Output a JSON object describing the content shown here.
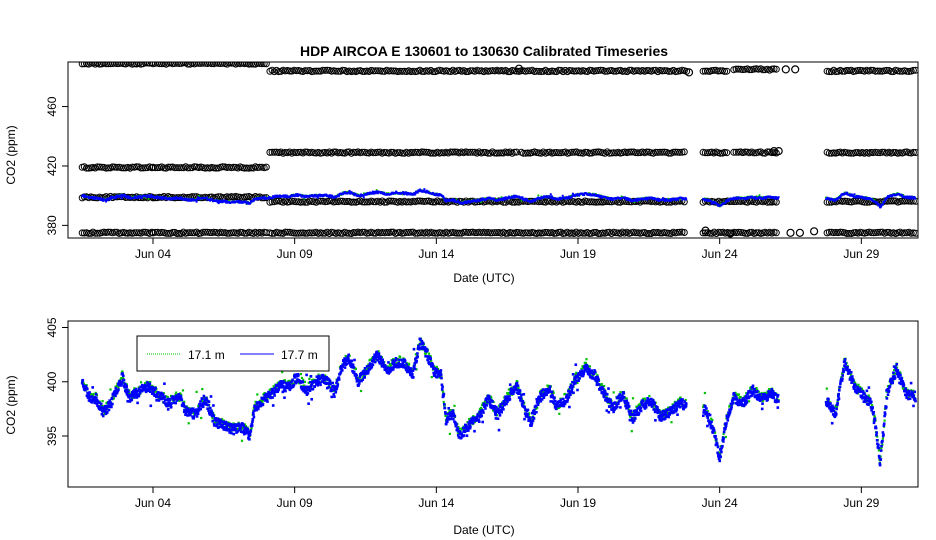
{
  "chart_data": [
    {
      "type": "scatter",
      "title": "HDP   AIRCOA  E   130601  to  130630   Calibrated Timeseries",
      "xlabel": "Date (UTC)",
      "ylabel": "CO2 (ppm)",
      "x_range": [
        "2013-06-01",
        "2013-07-01"
      ],
      "ylim": [
        371.5,
        490
      ],
      "x_ticks": [
        {
          "date": "2013-06-04",
          "label": "Jun 04"
        },
        {
          "date": "2013-06-09",
          "label": "Jun 09"
        },
        {
          "date": "2013-06-14",
          "label": "Jun 14"
        },
        {
          "date": "2013-06-19",
          "label": "Jun 19"
        },
        {
          "date": "2013-06-24",
          "label": "Jun 24"
        },
        {
          "date": "2013-06-29",
          "label": "Jun 29"
        }
      ],
      "y_ticks": [
        380,
        420,
        460
      ],
      "calibration_series": [
        {
          "marker": "open-circle",
          "color": "#000000",
          "segments": [
            {
              "start": "2013-06-01T12:00",
              "end": "2013-06-03T23:00",
              "value": 489
            },
            {
              "start": "2013-06-04T00:00",
              "end": "2013-06-08T00:00",
              "value": 489
            },
            {
              "start": "2013-06-08T03:00",
              "end": "2013-06-22T20:00",
              "value": 484
            },
            {
              "start": "2013-06-23T10:00",
              "end": "2013-06-24T06:00",
              "value": 484
            },
            {
              "start": "2013-06-24T12:00",
              "end": "2013-06-26T00:00",
              "value": 485
            },
            {
              "start": "2013-06-27T19:00",
              "end": "2013-06-29T10:00",
              "value": 484
            },
            {
              "start": "2013-06-29T12:00",
              "end": "2013-06-30T22:00",
              "value": 484
            }
          ]
        },
        {
          "marker": "open-circle",
          "color": "#000000",
          "segments": [
            {
              "start": "2013-06-01T12:00",
              "end": "2013-06-03T23:00",
              "value": 419
            },
            {
              "start": "2013-06-04T00:00",
              "end": "2013-06-08T00:00",
              "value": 419
            },
            {
              "start": "2013-06-08T03:00",
              "end": "2013-06-16T20:00",
              "value": 429
            },
            {
              "start": "2013-06-17T00:00",
              "end": "2013-06-22T18:00",
              "value": 429
            },
            {
              "start": "2013-06-23T10:00",
              "end": "2013-06-24T06:00",
              "value": 429
            },
            {
              "start": "2013-06-24T12:00",
              "end": "2013-06-26T00:00",
              "value": 429
            },
            {
              "start": "2013-06-27T19:00",
              "end": "2013-06-29T10:00",
              "value": 429
            },
            {
              "start": "2013-06-29T12:00",
              "end": "2013-06-30T22:00",
              "value": 429
            }
          ]
        },
        {
          "marker": "open-circle",
          "color": "#000000",
          "segments": [
            {
              "start": "2013-06-01T12:00",
              "end": "2013-06-03T23:00",
              "value": 399
            },
            {
              "start": "2013-06-04T00:00",
              "end": "2013-06-08T00:00",
              "value": 399
            },
            {
              "start": "2013-06-08T03:00",
              "end": "2013-06-22T18:00",
              "value": 396
            },
            {
              "start": "2013-06-23T10:00",
              "end": "2013-06-26T00:00",
              "value": 396
            },
            {
              "start": "2013-06-27T19:00",
              "end": "2013-06-30T22:00",
              "value": 396
            }
          ]
        },
        {
          "marker": "open-circle",
          "color": "#000000",
          "segments": [
            {
              "start": "2013-06-01T12:00",
              "end": "2013-06-03T23:00",
              "value": 375
            },
            {
              "start": "2013-06-04T00:00",
              "end": "2013-06-08T00:00",
              "value": 375
            },
            {
              "start": "2013-06-08T03:00",
              "end": "2013-06-22T18:00",
              "value": 375
            },
            {
              "start": "2013-06-23T10:00",
              "end": "2013-06-26T00:00",
              "value": 375
            },
            {
              "start": "2013-06-27T19:00",
              "end": "2013-06-30T22:00",
              "value": 375
            }
          ]
        }
      ],
      "series": [
        {
          "color": "#00c000",
          "values_ref": "co2_trace_offset_a"
        },
        {
          "color": "#0000ff",
          "values_ref": "co2_trace"
        }
      ]
    },
    {
      "type": "scatter",
      "xlabel": "Date (UTC)",
      "ylabel": "CO2 (ppm)",
      "x_range": [
        "2013-06-01",
        "2013-07-01"
      ],
      "ylim": [
        390.3,
        405.6
      ],
      "x_ticks": [
        {
          "date": "2013-06-04",
          "label": "Jun 04"
        },
        {
          "date": "2013-06-09",
          "label": "Jun 09"
        },
        {
          "date": "2013-06-14",
          "label": "Jun 14"
        },
        {
          "date": "2013-06-19",
          "label": "Jun 19"
        },
        {
          "date": "2013-06-24",
          "label": "Jun 24"
        },
        {
          "date": "2013-06-29",
          "label": "Jun 29"
        }
      ],
      "y_ticks": [
        395,
        400,
        405
      ],
      "legend": {
        "position": "top-left",
        "entries": [
          {
            "name": "17.1 m",
            "color": "#00c000"
          },
          {
            "name": "17.7 m",
            "color": "#0000ff"
          }
        ]
      },
      "series": [
        {
          "name": "17.1 m",
          "color": "#00c000"
        },
        {
          "name": "17.7 m",
          "color": "#0000ff"
        }
      ],
      "co2_trace": [
        [
          "2013-06-01T12:00",
          400.1
        ],
        [
          "2013-06-01T18:00",
          398.6
        ],
        [
          "2013-06-02T00:00",
          398.4
        ],
        [
          "2013-06-02T06:00",
          397.2
        ],
        [
          "2013-06-02T12:00",
          397.9
        ],
        [
          "2013-06-02T18:00",
          399.5
        ],
        [
          "2013-06-02T22:00",
          400.4
        ],
        [
          "2013-06-03T04:00",
          398.6
        ],
        [
          "2013-06-03T12:00",
          399.1
        ],
        [
          "2013-06-03T20:00",
          399.6
        ],
        [
          "2013-06-04T06:00",
          398.6
        ],
        [
          "2013-06-04T14:00",
          398.0
        ],
        [
          "2013-06-04T22:00",
          398.6
        ],
        [
          "2013-06-05T04:00",
          397.3
        ],
        [
          "2013-06-05T12:00",
          397.0
        ],
        [
          "2013-06-05T20:00",
          398.4
        ],
        [
          "2013-06-06T04:00",
          396.4
        ],
        [
          "2013-06-06T12:00",
          396.0
        ],
        [
          "2013-06-06T20:00",
          395.6
        ],
        [
          "2013-06-07T02:00",
          395.9
        ],
        [
          "2013-06-07T10:00",
          395.0
        ],
        [
          "2013-06-07T14:00",
          397.5
        ],
        [
          "2013-06-07T20:00",
          398.2
        ],
        [
          "2013-06-08T04:00",
          398.8
        ],
        [
          "2013-06-08T12:00",
          399.8
        ],
        [
          "2013-06-08T18:00",
          399.4
        ],
        [
          "2013-06-09T02:00",
          400.4
        ],
        [
          "2013-06-09T10:00",
          399.2
        ],
        [
          "2013-06-09T18:00",
          400.0
        ],
        [
          "2013-06-10T02:00",
          400.3
        ],
        [
          "2013-06-10T10:00",
          399.0
        ],
        [
          "2013-06-10T16:00",
          401.4
        ],
        [
          "2013-06-10T22:00",
          402.2
        ],
        [
          "2013-06-11T06:00",
          400.0
        ],
        [
          "2013-06-11T14:00",
          401.2
        ],
        [
          "2013-06-11T22:00",
          402.4
        ],
        [
          "2013-06-12T06:00",
          401.0
        ],
        [
          "2013-06-12T14:00",
          401.8
        ],
        [
          "2013-06-12T22:00",
          401.6
        ],
        [
          "2013-06-13T04:00",
          400.6
        ],
        [
          "2013-06-13T10:00",
          403.6
        ],
        [
          "2013-06-13T16:00",
          402.6
        ],
        [
          "2013-06-13T22:00",
          401.0
        ],
        [
          "2013-06-14T04:00",
          400.6
        ],
        [
          "2013-06-14T08:00",
          396.5
        ],
        [
          "2013-06-14T14:00",
          397.0
        ],
        [
          "2013-06-14T20:00",
          395.0
        ],
        [
          "2013-06-15T04:00",
          396.0
        ],
        [
          "2013-06-15T12:00",
          396.8
        ],
        [
          "2013-06-15T20:00",
          398.4
        ],
        [
          "2013-06-16T04:00",
          397.0
        ],
        [
          "2013-06-16T12:00",
          398.5
        ],
        [
          "2013-06-16T20:00",
          399.6
        ],
        [
          "2013-06-17T02:00",
          397.8
        ],
        [
          "2013-06-17T08:00",
          396.2
        ],
        [
          "2013-06-17T16:00",
          398.6
        ],
        [
          "2013-06-18T00:00",
          399.4
        ],
        [
          "2013-06-18T06:00",
          397.6
        ],
        [
          "2013-06-18T14:00",
          398.4
        ],
        [
          "2013-06-18T22:00",
          400.2
        ],
        [
          "2013-06-19T06:00",
          401.2
        ],
        [
          "2013-06-19T14:00",
          400.6
        ],
        [
          "2013-06-19T22:00",
          398.8
        ],
        [
          "2013-06-20T06:00",
          397.6
        ],
        [
          "2013-06-20T14:00",
          398.8
        ],
        [
          "2013-06-20T22:00",
          396.6
        ],
        [
          "2013-06-21T06:00",
          397.8
        ],
        [
          "2013-06-21T14:00",
          398.2
        ],
        [
          "2013-06-21T22:00",
          396.8
        ],
        [
          "2013-06-22T06:00",
          397.2
        ],
        [
          "2013-06-22T14:00",
          398.0
        ],
        [
          "2013-06-23T12:00",
          397.5
        ],
        [
          "2013-06-23T18:00",
          395.8
        ],
        [
          "2013-06-24T00:00",
          393.0
        ],
        [
          "2013-06-24T06:00",
          396.5
        ],
        [
          "2013-06-24T12:00",
          398.5
        ],
        [
          "2013-06-24T20:00",
          398.0
        ],
        [
          "2013-06-25T04:00",
          399.2
        ],
        [
          "2013-06-25T12:00",
          398.4
        ],
        [
          "2013-06-25T20:00",
          399.0
        ],
        [
          "2013-06-26T00:00",
          398.4
        ],
        [
          "2013-06-27T20:00",
          398.0
        ],
        [
          "2013-06-28T02:00",
          397.0
        ],
        [
          "2013-06-28T10:00",
          401.8
        ],
        [
          "2013-06-28T18:00",
          399.6
        ],
        [
          "2013-06-29T02:00",
          398.6
        ],
        [
          "2013-06-29T08:00",
          398.0
        ],
        [
          "2013-06-29T12:00",
          396.0
        ],
        [
          "2013-06-29T16:00",
          392.5
        ],
        [
          "2013-06-29T22:00",
          399.0
        ],
        [
          "2013-06-30T06:00",
          401.2
        ],
        [
          "2013-06-30T14:00",
          398.8
        ],
        [
          "2013-06-30T22:00",
          398.6
        ]
      ],
      "co2_trace_offset_a": 0.15
    }
  ]
}
